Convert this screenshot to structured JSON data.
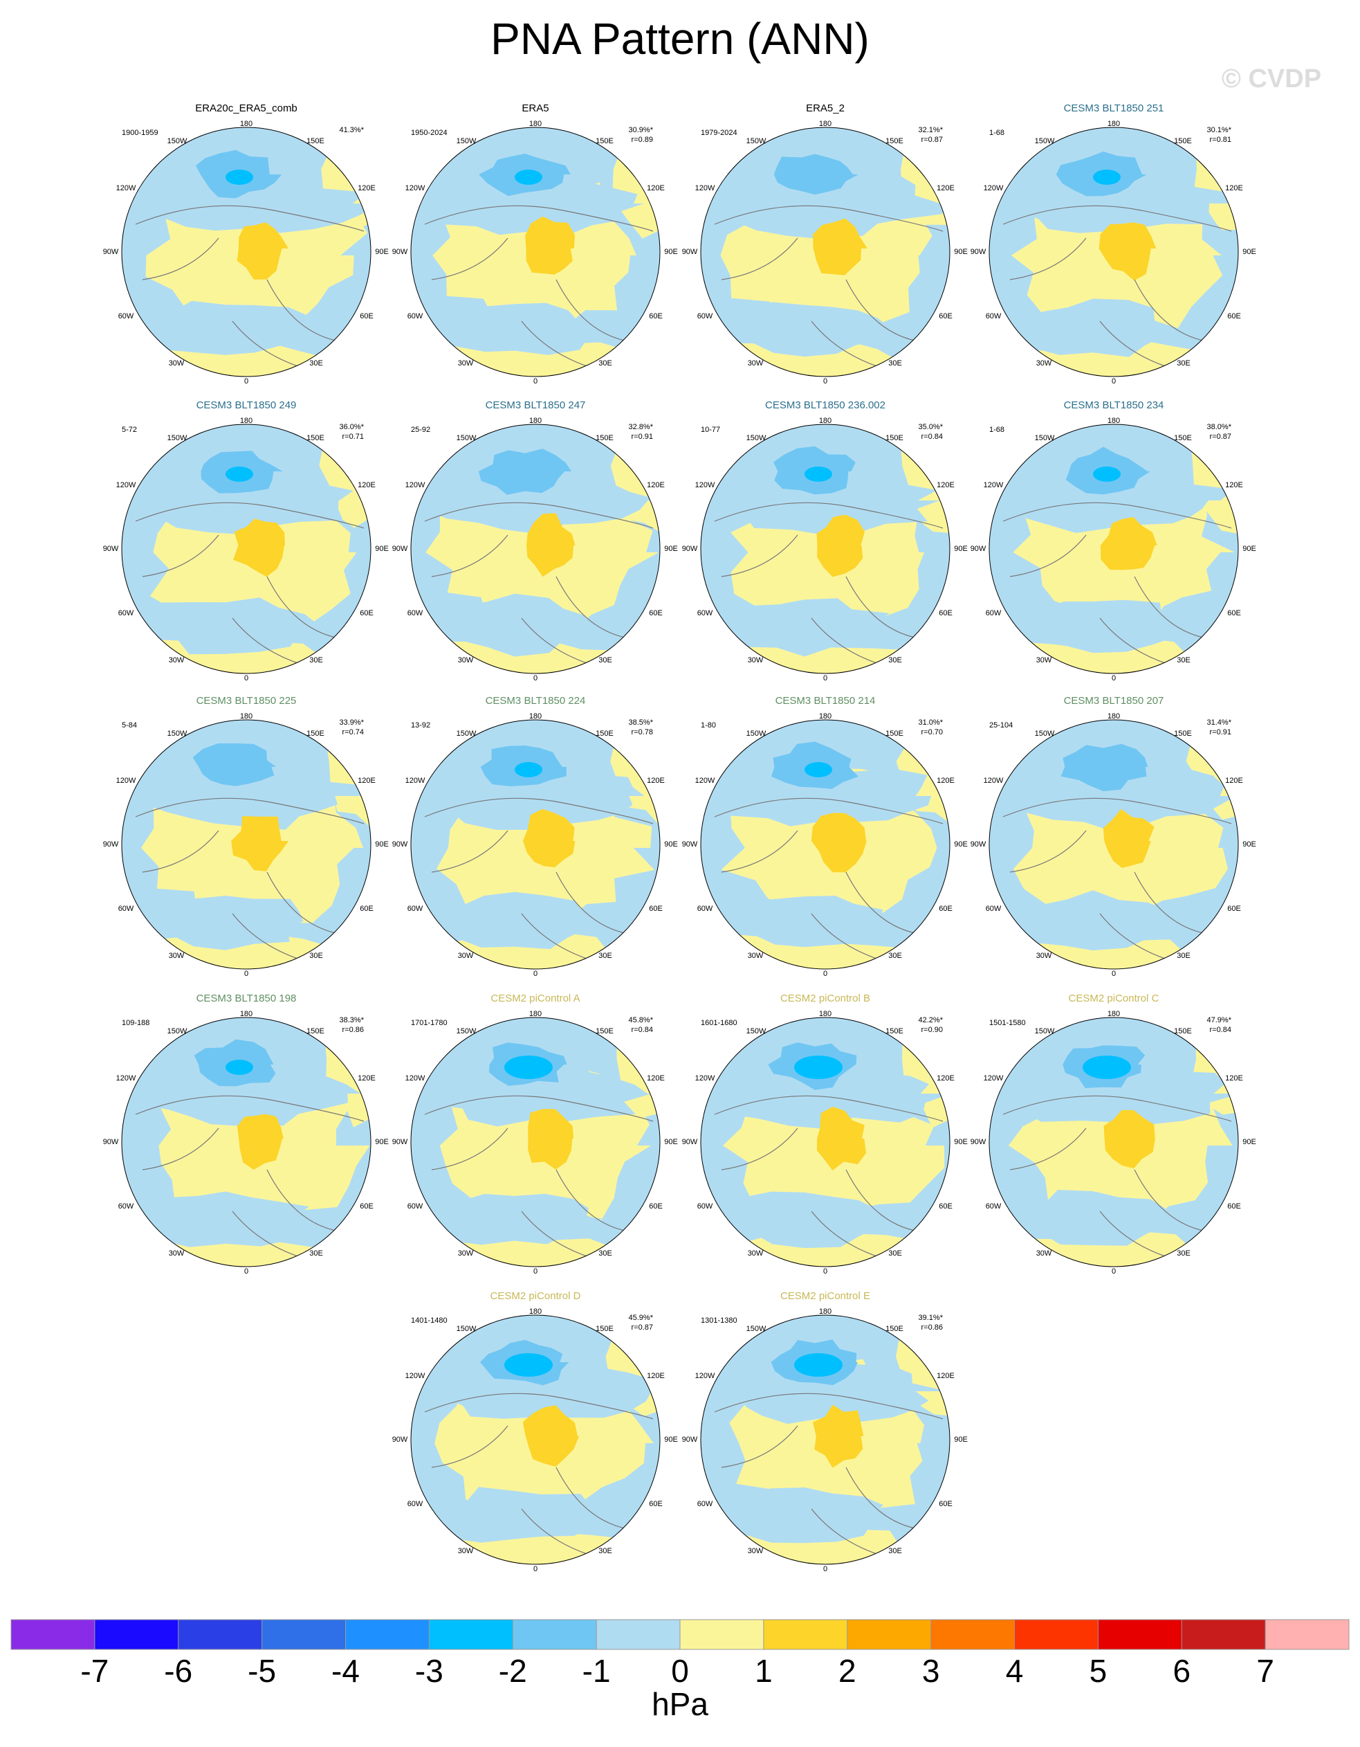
{
  "title": "PNA Pattern (ANN)",
  "watermark": "© CVDP",
  "lon_labels": [
    "180",
    "150W",
    "150E",
    "120W",
    "120E",
    "90W",
    "90E",
    "60W",
    "60E",
    "30W",
    "30E",
    "0"
  ],
  "panels": [
    {
      "title": "ERA20c_ERA5_comb",
      "color": "#000000",
      "period": "1900-1959",
      "pct": "41.3%*"
    },
    {
      "title": "ERA5",
      "color": "#000000",
      "period": "1950-2024",
      "pct": "30.9%*",
      "r": "r=0.89"
    },
    {
      "title": "ERA5_2",
      "color": "#000000",
      "period": "1979-2024",
      "pct": "32.1%*",
      "r": "r=0.87"
    },
    {
      "title": "CESM3 BLT1850 251",
      "color": "#2b6f8c",
      "period": "1-68",
      "pct": "30.1%*",
      "r": "r=0.81"
    },
    {
      "title": "CESM3 BLT1850 249",
      "color": "#2b6f8c",
      "period": "5-72",
      "pct": "36.0%*",
      "r": "r=0.71"
    },
    {
      "title": "CESM3 BLT1850 247",
      "color": "#2b6f8c",
      "period": "25-92",
      "pct": "32.8%*",
      "r": "r=0.91"
    },
    {
      "title": "CESM3 BLT1850 236.002",
      "color": "#2b6f8c",
      "period": "10-77",
      "pct": "35.0%*",
      "r": "r=0.84"
    },
    {
      "title": "CESM3 BLT1850 234",
      "color": "#2b6f8c",
      "period": "1-68",
      "pct": "38.0%*",
      "r": "r=0.87"
    },
    {
      "title": "CESM3 BLT1850 225",
      "color": "#5e8f62",
      "period": "5-84",
      "pct": "33.9%*",
      "r": "r=0.74"
    },
    {
      "title": "CESM3 BLT1850 224",
      "color": "#5e8f62",
      "period": "13-92",
      "pct": "38.5%*",
      "r": "r=0.78"
    },
    {
      "title": "CESM3 BLT1850 214",
      "color": "#5e8f62",
      "period": "1-80",
      "pct": "31.0%*",
      "r": "r=0.70"
    },
    {
      "title": "CESM3 BLT1850 207",
      "color": "#5e8f62",
      "period": "25-104",
      "pct": "31.4%*",
      "r": "r=0.91"
    },
    {
      "title": "CESM3 BLT1850 198",
      "color": "#5e8f62",
      "period": "109-188",
      "pct": "38.3%*",
      "r": "r=0.86"
    },
    {
      "title": "CESM2 piControl A",
      "color": "#c8b856",
      "period": "1701-1780",
      "pct": "45.8%*",
      "r": "r=0.84"
    },
    {
      "title": "CESM2 piControl B",
      "color": "#c8b856",
      "period": "1601-1680",
      "pct": "42.2%*",
      "r": "r=0.90"
    },
    {
      "title": "CESM2 piControl C",
      "color": "#c8b856",
      "period": "1501-1580",
      "pct": "47.9%*",
      "r": "r=0.84"
    },
    {
      "title": "CESM2 piControl D",
      "color": "#c8b856",
      "period": "1401-1480",
      "pct": "45.9%*",
      "r": "r=0.87"
    },
    {
      "title": "CESM2 piControl E",
      "color": "#c8b856",
      "period": "1301-1380",
      "pct": "39.1%*",
      "r": "r=0.86"
    }
  ],
  "colorbar": {
    "colors": [
      "#8a2be8",
      "#1a0aff",
      "#2a40e6",
      "#2f6fe8",
      "#1f90ff",
      "#00bfff",
      "#70c6f2",
      "#b0dcf2",
      "#fbf59a",
      "#fcd42a",
      "#fca800",
      "#fd7800",
      "#fd3300",
      "#e60000",
      "#c81c1c",
      "#ffb0b0"
    ],
    "ticks": [
      -7,
      -6,
      -5,
      -4,
      -3,
      -2,
      -1,
      0,
      1,
      2,
      3,
      4,
      5,
      6,
      7
    ],
    "units": "hPa"
  }
}
